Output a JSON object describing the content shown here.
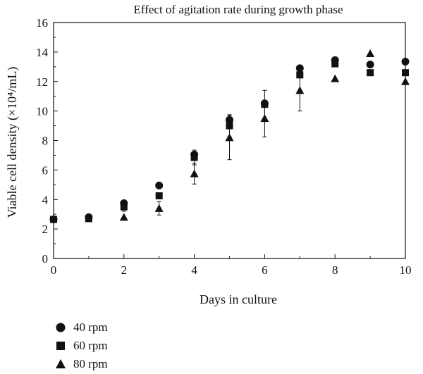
{
  "chart_data": {
    "type": "scatter",
    "title": "Effect of agitation rate during growth phase",
    "xlabel": "Days in culture",
    "ylabel": "Viable cell density (×10⁴/mL)",
    "xlim": [
      0,
      10
    ],
    "ylim": [
      0,
      16
    ],
    "xticks": [
      0,
      2,
      4,
      6,
      8,
      10
    ],
    "yticks": [
      0,
      2,
      4,
      6,
      8,
      10,
      12,
      14,
      16
    ],
    "grid": false,
    "legend_position": "bottom-left",
    "series": [
      {
        "name": "40 rpm",
        "marker": "circle",
        "points": [
          {
            "x": 0,
            "y": 2.65
          },
          {
            "x": 1,
            "y": 2.8
          },
          {
            "x": 2,
            "y": 3.75
          },
          {
            "x": 3,
            "y": 4.95
          },
          {
            "x": 4,
            "y": 7.05
          },
          {
            "x": 5,
            "y": 9.4
          },
          {
            "x": 6,
            "y": 10.5
          },
          {
            "x": 7,
            "y": 12.9
          },
          {
            "x": 8,
            "y": 13.45
          },
          {
            "x": 9,
            "y": 13.15
          },
          {
            "x": 10,
            "y": 13.35
          }
        ]
      },
      {
        "name": "60 rpm",
        "marker": "square",
        "points": [
          {
            "x": 0,
            "y": 2.65,
            "err": 0.1
          },
          {
            "x": 1,
            "y": 2.7
          },
          {
            "x": 2,
            "y": 3.5,
            "err": 0.3
          },
          {
            "x": 3,
            "y": 4.25
          },
          {
            "x": 4,
            "y": 6.85,
            "err": 0.5
          },
          {
            "x": 5,
            "y": 9.0,
            "err": 0.75
          },
          {
            "x": 6,
            "y": 10.45,
            "err": 0.95
          },
          {
            "x": 7,
            "y": 12.45
          },
          {
            "x": 8,
            "y": 13.2
          },
          {
            "x": 9,
            "y": 12.6
          },
          {
            "x": 10,
            "y": 12.6
          }
        ]
      },
      {
        "name": "80 rpm",
        "marker": "triangle",
        "points": [
          {
            "x": 2,
            "y": 2.8
          },
          {
            "x": 3,
            "y": 3.4,
            "err": 0.45
          },
          {
            "x": 4,
            "y": 5.75,
            "err": 0.7
          },
          {
            "x": 5,
            "y": 8.2,
            "err": 1.5
          },
          {
            "x": 6,
            "y": 9.5,
            "err": 1.25
          },
          {
            "x": 7,
            "y": 11.4,
            "err": 1.4
          },
          {
            "x": 8,
            "y": 12.2
          },
          {
            "x": 9,
            "y": 13.9
          },
          {
            "x": 10,
            "y": 12.0
          }
        ]
      }
    ]
  }
}
